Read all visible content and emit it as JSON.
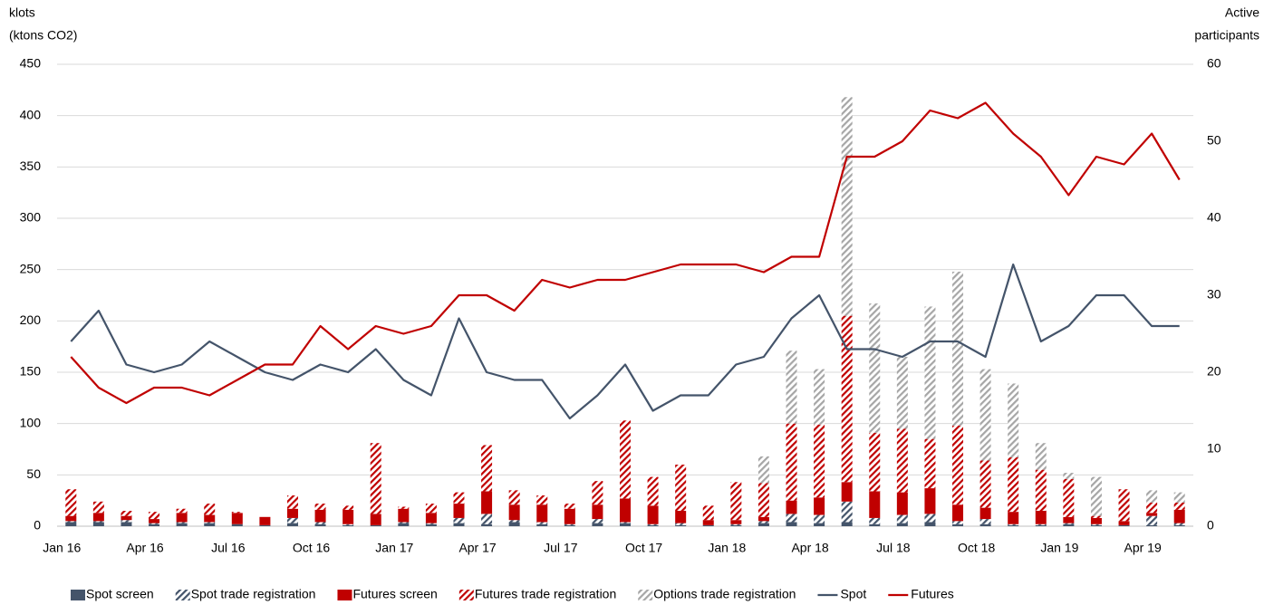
{
  "chart_data": {
    "type": "bar",
    "y_label": [
      "klots",
      "(ktons CO2)"
    ],
    "y2_label": [
      "Active",
      "participants"
    ],
    "categories": [
      "Jan 16",
      null,
      null,
      "Apr 16",
      null,
      null,
      "Jul 16",
      null,
      null,
      "Oct 16",
      null,
      null,
      "Jan 17",
      null,
      null,
      "Apr 17",
      null,
      null,
      "Jul 17",
      null,
      null,
      "Oct 17",
      null,
      null,
      "Jan 18",
      null,
      null,
      "Apr 18",
      null,
      null,
      "Jul 18",
      null,
      null,
      "Oct 18",
      null,
      null,
      "Jan 19",
      null,
      null,
      "Apr 19",
      null
    ],
    "ylim": [
      0,
      450
    ],
    "yticks": [
      0,
      50,
      100,
      150,
      200,
      250,
      300,
      350,
      400,
      450
    ],
    "y2lim": [
      0,
      60
    ],
    "y2ticks": [
      0,
      10,
      20,
      30,
      40,
      50,
      60
    ],
    "grid": true,
    "legend": "bottom",
    "stacked": true,
    "series": [
      {
        "name": "Spot screen",
        "type": "bar",
        "color": "#44546a",
        "pattern": "solid",
        "values": [
          4,
          4,
          4,
          2,
          3,
          3,
          2,
          1,
          3,
          2,
          1,
          1,
          3,
          2,
          3,
          2,
          4,
          2,
          1,
          3,
          3,
          1,
          1,
          1,
          1,
          3,
          4,
          3,
          4,
          2,
          3,
          4,
          2,
          2,
          1,
          1,
          2,
          1,
          1,
          1,
          1
        ]
      },
      {
        "name": "Spot trade registration",
        "type": "bar",
        "color": "#44546a",
        "pattern": "hatch",
        "values": [
          1,
          1,
          2,
          1,
          1,
          1,
          0,
          0,
          5,
          2,
          1,
          0,
          1,
          1,
          5,
          10,
          2,
          2,
          1,
          4,
          1,
          1,
          2,
          0,
          1,
          2,
          8,
          8,
          20,
          6,
          8,
          8,
          3,
          5,
          1,
          1,
          1,
          1,
          0,
          9,
          2
        ]
      },
      {
        "name": "Futures screen",
        "type": "bar",
        "color": "#c00000",
        "pattern": "solid",
        "values": [
          5,
          8,
          4,
          4,
          9,
          7,
          11,
          8,
          9,
          12,
          14,
          11,
          13,
          10,
          14,
          22,
          15,
          17,
          15,
          14,
          23,
          18,
          12,
          5,
          4,
          4,
          13,
          17,
          19,
          26,
          22,
          25,
          16,
          11,
          12,
          13,
          6,
          6,
          4,
          3,
          13
        ]
      },
      {
        "name": "Futures trade registration",
        "type": "bar",
        "color": "#c00000",
        "pattern": "hatch",
        "values": [
          26,
          11,
          5,
          7,
          4,
          11,
          1,
          0,
          13,
          6,
          4,
          69,
          2,
          9,
          11,
          45,
          14,
          9,
          5,
          23,
          76,
          28,
          45,
          14,
          37,
          33,
          75,
          71,
          162,
          57,
          62,
          48,
          77,
          46,
          53,
          40,
          37,
          2,
          31,
          10,
          7
        ]
      },
      {
        "name": "Options trade registration",
        "type": "bar",
        "color": "#a6a6a6",
        "pattern": "hatch",
        "values": [
          0,
          0,
          0,
          0,
          0,
          0,
          0,
          0,
          0,
          0,
          0,
          0,
          0,
          0,
          0,
          0,
          0,
          0,
          0,
          0,
          0,
          0,
          0,
          0,
          0,
          26,
          71,
          54,
          213,
          126,
          70,
          129,
          150,
          89,
          72,
          26,
          6,
          38,
          0,
          12,
          10
        ]
      },
      {
        "name": "Spot",
        "type": "line",
        "axis": "y2",
        "color": "#44546a",
        "values": [
          24,
          28,
          21,
          20,
          21,
          24,
          22,
          20,
          19,
          21,
          20,
          23,
          19,
          17,
          27,
          20,
          19,
          19,
          14,
          17,
          21,
          15,
          17,
          17,
          21,
          22,
          27,
          30,
          23,
          23,
          22,
          24,
          24,
          22,
          34,
          24,
          26,
          30,
          30,
          26,
          26
        ]
      },
      {
        "name": "Futures",
        "type": "line",
        "axis": "y2",
        "color": "#c00000",
        "values": [
          22,
          18,
          16,
          18,
          18,
          17,
          19,
          21,
          21,
          26,
          23,
          26,
          25,
          26,
          30,
          30,
          28,
          32,
          31,
          32,
          32,
          33,
          34,
          34,
          34,
          33,
          35,
          35,
          48,
          48,
          50,
          54,
          53,
          55,
          51,
          48,
          43,
          48,
          47,
          51,
          45
        ]
      }
    ]
  }
}
